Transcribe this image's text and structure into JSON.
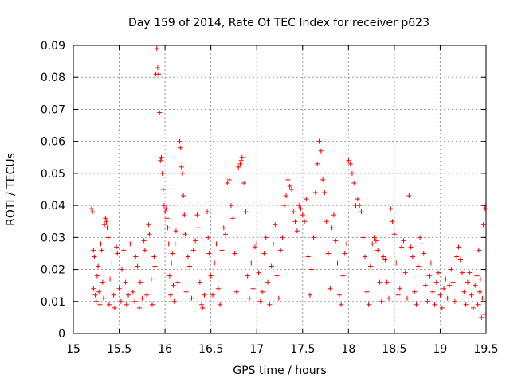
{
  "chart_data": {
    "type": "scatter",
    "title": "Day 159 of 2014, Rate Of TEC Index for receiver p623",
    "xlabel": "GPS time / hours",
    "ylabel": "ROTI / TECUs",
    "xlim": [
      15,
      19.5
    ],
    "ylim": [
      0,
      0.09
    ],
    "x_ticks": [
      15,
      15.5,
      16,
      16.5,
      17,
      17.5,
      18,
      18.5,
      19,
      19.5
    ],
    "x_tick_labels": [
      "15",
      "15.5",
      "16",
      "16.5",
      "17",
      "17.5",
      "18",
      "18.5",
      "19",
      "19.5"
    ],
    "y_ticks": [
      0,
      0.01,
      0.02,
      0.03,
      0.04,
      0.05,
      0.06,
      0.07,
      0.08,
      0.09
    ],
    "y_tick_labels": [
      "0",
      "0.01",
      "0.02",
      "0.03",
      "0.04",
      "0.05",
      "0.06",
      "0.07",
      "0.08",
      "0.09"
    ],
    "grid": true,
    "marker": "plus",
    "color": "#ff0000",
    "series": [
      {
        "points": [
          [
            15.2,
            0.039
          ],
          [
            15.21,
            0.038
          ],
          [
            15.22,
            0.026
          ],
          [
            15.23,
            0.024
          ],
          [
            15.22,
            0.014
          ],
          [
            15.24,
            0.012
          ],
          [
            15.25,
            0.01
          ],
          [
            15.26,
            0.018
          ],
          [
            15.27,
            0.021
          ],
          [
            15.28,
            0.013
          ],
          [
            15.29,
            0.009
          ],
          [
            15.3,
            0.028
          ],
          [
            15.31,
            0.026
          ],
          [
            15.32,
            0.016
          ],
          [
            15.33,
            0.011
          ],
          [
            15.34,
            0.034
          ],
          [
            15.35,
            0.036
          ],
          [
            15.36,
            0.035
          ],
          [
            15.37,
            0.033
          ],
          [
            15.38,
            0.03
          ],
          [
            15.39,
            0.009
          ],
          [
            15.4,
            0.017
          ],
          [
            15.42,
            0.022
          ],
          [
            15.44,
            0.012
          ],
          [
            15.45,
            0.008
          ],
          [
            15.47,
            0.027
          ],
          [
            15.48,
            0.025
          ],
          [
            15.5,
            0.014
          ],
          [
            15.52,
            0.01
          ],
          [
            15.53,
            0.02
          ],
          [
            15.55,
            0.026
          ],
          [
            15.57,
            0.016
          ],
          [
            15.58,
            0.009
          ],
          [
            15.6,
            0.012
          ],
          [
            15.62,
            0.028
          ],
          [
            15.63,
            0.022
          ],
          [
            15.65,
            0.013
          ],
          [
            15.67,
            0.01
          ],
          [
            15.68,
            0.024
          ],
          [
            15.7,
            0.021
          ],
          [
            15.72,
            0.008
          ],
          [
            15.73,
            0.016
          ],
          [
            15.75,
            0.011
          ],
          [
            15.77,
            0.029
          ],
          [
            15.78,
            0.026
          ],
          [
            15.8,
            0.012
          ],
          [
            15.82,
            0.034
          ],
          [
            15.83,
            0.031
          ],
          [
            15.85,
            0.017
          ],
          [
            15.86,
            0.009
          ],
          [
            15.88,
            0.024
          ],
          [
            15.89,
            0.021
          ],
          [
            15.9,
            0.081
          ],
          [
            15.91,
            0.089
          ],
          [
            15.92,
            0.083
          ],
          [
            15.93,
            0.081
          ],
          [
            15.94,
            0.069
          ],
          [
            15.95,
            0.054
          ],
          [
            15.96,
            0.055
          ],
          [
            15.97,
            0.05
          ],
          [
            15.98,
            0.045
          ],
          [
            15.99,
            0.04
          ],
          [
            16.0,
            0.038
          ],
          [
            16.01,
            0.039
          ],
          [
            16.02,
            0.036
          ],
          [
            16.03,
            0.033
          ],
          [
            16.04,
            0.028
          ],
          [
            16.05,
            0.018
          ],
          [
            16.06,
            0.012
          ],
          [
            16.07,
            0.022
          ],
          [
            16.08,
            0.025
          ],
          [
            16.09,
            0.015
          ],
          [
            16.1,
            0.01
          ],
          [
            16.11,
            0.028
          ],
          [
            16.12,
            0.032
          ],
          [
            16.14,
            0.016
          ],
          [
            16.16,
            0.06
          ],
          [
            16.17,
            0.058
          ],
          [
            16.18,
            0.052
          ],
          [
            16.19,
            0.05
          ],
          [
            16.2,
            0.043
          ],
          [
            16.21,
            0.037
          ],
          [
            16.22,
            0.031
          ],
          [
            16.23,
            0.013
          ],
          [
            16.25,
            0.024
          ],
          [
            16.27,
            0.021
          ],
          [
            16.29,
            0.011
          ],
          [
            16.31,
            0.026
          ],
          [
            16.33,
            0.029
          ],
          [
            16.35,
            0.037
          ],
          [
            16.36,
            0.033
          ],
          [
            16.38,
            0.016
          ],
          [
            16.4,
            0.009
          ],
          [
            16.41,
            0.008
          ],
          [
            16.43,
            0.012
          ],
          [
            16.46,
            0.038
          ],
          [
            16.47,
            0.03
          ],
          [
            16.48,
            0.025
          ],
          [
            16.5,
            0.018
          ],
          [
            16.52,
            0.012
          ],
          [
            16.54,
            0.022
          ],
          [
            16.56,
            0.028
          ],
          [
            16.58,
            0.014
          ],
          [
            16.6,
            0.009
          ],
          [
            16.62,
            0.026
          ],
          [
            16.64,
            0.033
          ],
          [
            16.66,
            0.031
          ],
          [
            16.68,
            0.047
          ],
          [
            16.7,
            0.048
          ],
          [
            16.72,
            0.04
          ],
          [
            16.74,
            0.036
          ],
          [
            16.76,
            0.025
          ],
          [
            16.78,
            0.013
          ],
          [
            16.8,
            0.052
          ],
          [
            16.82,
            0.053
          ],
          [
            16.83,
            0.054
          ],
          [
            16.84,
            0.055
          ],
          [
            16.86,
            0.047
          ],
          [
            16.88,
            0.038
          ],
          [
            16.9,
            0.018
          ],
          [
            16.92,
            0.011
          ],
          [
            16.94,
            0.022
          ],
          [
            16.96,
            0.014
          ],
          [
            16.98,
            0.027
          ],
          [
            17.0,
            0.028
          ],
          [
            17.02,
            0.019
          ],
          [
            17.04,
            0.01
          ],
          [
            17.06,
            0.013
          ],
          [
            17.08,
            0.025
          ],
          [
            17.1,
            0.03
          ],
          [
            17.12,
            0.016
          ],
          [
            17.14,
            0.009
          ],
          [
            17.16,
            0.021
          ],
          [
            17.18,
            0.028
          ],
          [
            17.2,
            0.034
          ],
          [
            17.22,
            0.018
          ],
          [
            17.24,
            0.011
          ],
          [
            17.26,
            0.026
          ],
          [
            17.28,
            0.03
          ],
          [
            17.3,
            0.04
          ],
          [
            17.32,
            0.043
          ],
          [
            17.34,
            0.048
          ],
          [
            17.36,
            0.046
          ],
          [
            17.38,
            0.045
          ],
          [
            17.4,
            0.038
          ],
          [
            17.42,
            0.035
          ],
          [
            17.44,
            0.032
          ],
          [
            17.46,
            0.04
          ],
          [
            17.48,
            0.039
          ],
          [
            17.5,
            0.037
          ],
          [
            17.52,
            0.035
          ],
          [
            17.54,
            0.042
          ],
          [
            17.56,
            0.024
          ],
          [
            17.58,
            0.012
          ],
          [
            17.6,
            0.02
          ],
          [
            17.62,
            0.03
          ],
          [
            17.64,
            0.044
          ],
          [
            17.66,
            0.053
          ],
          [
            17.68,
            0.06
          ],
          [
            17.7,
            0.057
          ],
          [
            17.72,
            0.048
          ],
          [
            17.74,
            0.044
          ],
          [
            17.76,
            0.035
          ],
          [
            17.78,
            0.025
          ],
          [
            17.8,
            0.014
          ],
          [
            17.82,
            0.033
          ],
          [
            17.84,
            0.037
          ],
          [
            17.86,
            0.029
          ],
          [
            17.88,
            0.022
          ],
          [
            17.9,
            0.012
          ],
          [
            17.92,
            0.009
          ],
          [
            17.94,
            0.018
          ],
          [
            17.96,
            0.025
          ],
          [
            17.98,
            0.028
          ],
          [
            18.0,
            0.054
          ],
          [
            18.02,
            0.053
          ],
          [
            18.04,
            0.05
          ],
          [
            18.06,
            0.047
          ],
          [
            18.08,
            0.04
          ],
          [
            18.1,
            0.042
          ],
          [
            18.12,
            0.04
          ],
          [
            18.14,
            0.038
          ],
          [
            18.16,
            0.03
          ],
          [
            18.18,
            0.024
          ],
          [
            18.2,
            0.013
          ],
          [
            18.22,
            0.009
          ],
          [
            18.24,
            0.021
          ],
          [
            18.26,
            0.028
          ],
          [
            18.28,
            0.03
          ],
          [
            18.3,
            0.029
          ],
          [
            18.32,
            0.026
          ],
          [
            18.34,
            0.016
          ],
          [
            18.36,
            0.01
          ],
          [
            18.38,
            0.024
          ],
          [
            18.4,
            0.023
          ],
          [
            18.42,
            0.016
          ],
          [
            18.44,
            0.011
          ],
          [
            18.46,
            0.039
          ],
          [
            18.48,
            0.035
          ],
          [
            18.5,
            0.031
          ],
          [
            18.52,
            0.022
          ],
          [
            18.54,
            0.012
          ],
          [
            18.56,
            0.014
          ],
          [
            18.58,
            0.027
          ],
          [
            18.6,
            0.029
          ],
          [
            18.62,
            0.019
          ],
          [
            18.64,
            0.011
          ],
          [
            18.66,
            0.043
          ],
          [
            18.68,
            0.027
          ],
          [
            18.7,
            0.024
          ],
          [
            18.72,
            0.013
          ],
          [
            18.74,
            0.009
          ],
          [
            18.76,
            0.021
          ],
          [
            18.78,
            0.03
          ],
          [
            18.8,
            0.028
          ],
          [
            18.82,
            0.025
          ],
          [
            18.84,
            0.015
          ],
          [
            18.86,
            0.01
          ],
          [
            18.88,
            0.018
          ],
          [
            18.9,
            0.022
          ],
          [
            18.92,
            0.013
          ],
          [
            18.94,
            0.009
          ],
          [
            18.96,
            0.016
          ],
          [
            18.98,
            0.019
          ],
          [
            19.0,
            0.012
          ],
          [
            19.02,
            0.008
          ],
          [
            19.04,
            0.014
          ],
          [
            19.06,
            0.017
          ],
          [
            19.08,
            0.011
          ],
          [
            19.1,
            0.015
          ],
          [
            19.12,
            0.02
          ],
          [
            19.14,
            0.016
          ],
          [
            19.16,
            0.01
          ],
          [
            19.18,
            0.024
          ],
          [
            19.2,
            0.027
          ],
          [
            19.22,
            0.023
          ],
          [
            19.24,
            0.019
          ],
          [
            19.26,
            0.013
          ],
          [
            19.28,
            0.009
          ],
          [
            19.3,
            0.016
          ],
          [
            19.32,
            0.019
          ],
          [
            19.34,
            0.012
          ],
          [
            19.36,
            0.008
          ],
          [
            19.38,
            0.015
          ],
          [
            19.4,
            0.018
          ],
          [
            19.42,
            0.026
          ],
          [
            19.44,
            0.017
          ],
          [
            19.46,
            0.011
          ],
          [
            19.47,
            0.034
          ],
          [
            19.48,
            0.04
          ],
          [
            19.49,
            0.039
          ],
          [
            19.48,
            0.006
          ],
          [
            19.45,
            0.005
          ],
          [
            19.43,
            0.013
          ],
          [
            19.41,
            0.009
          ]
        ]
      }
    ]
  }
}
